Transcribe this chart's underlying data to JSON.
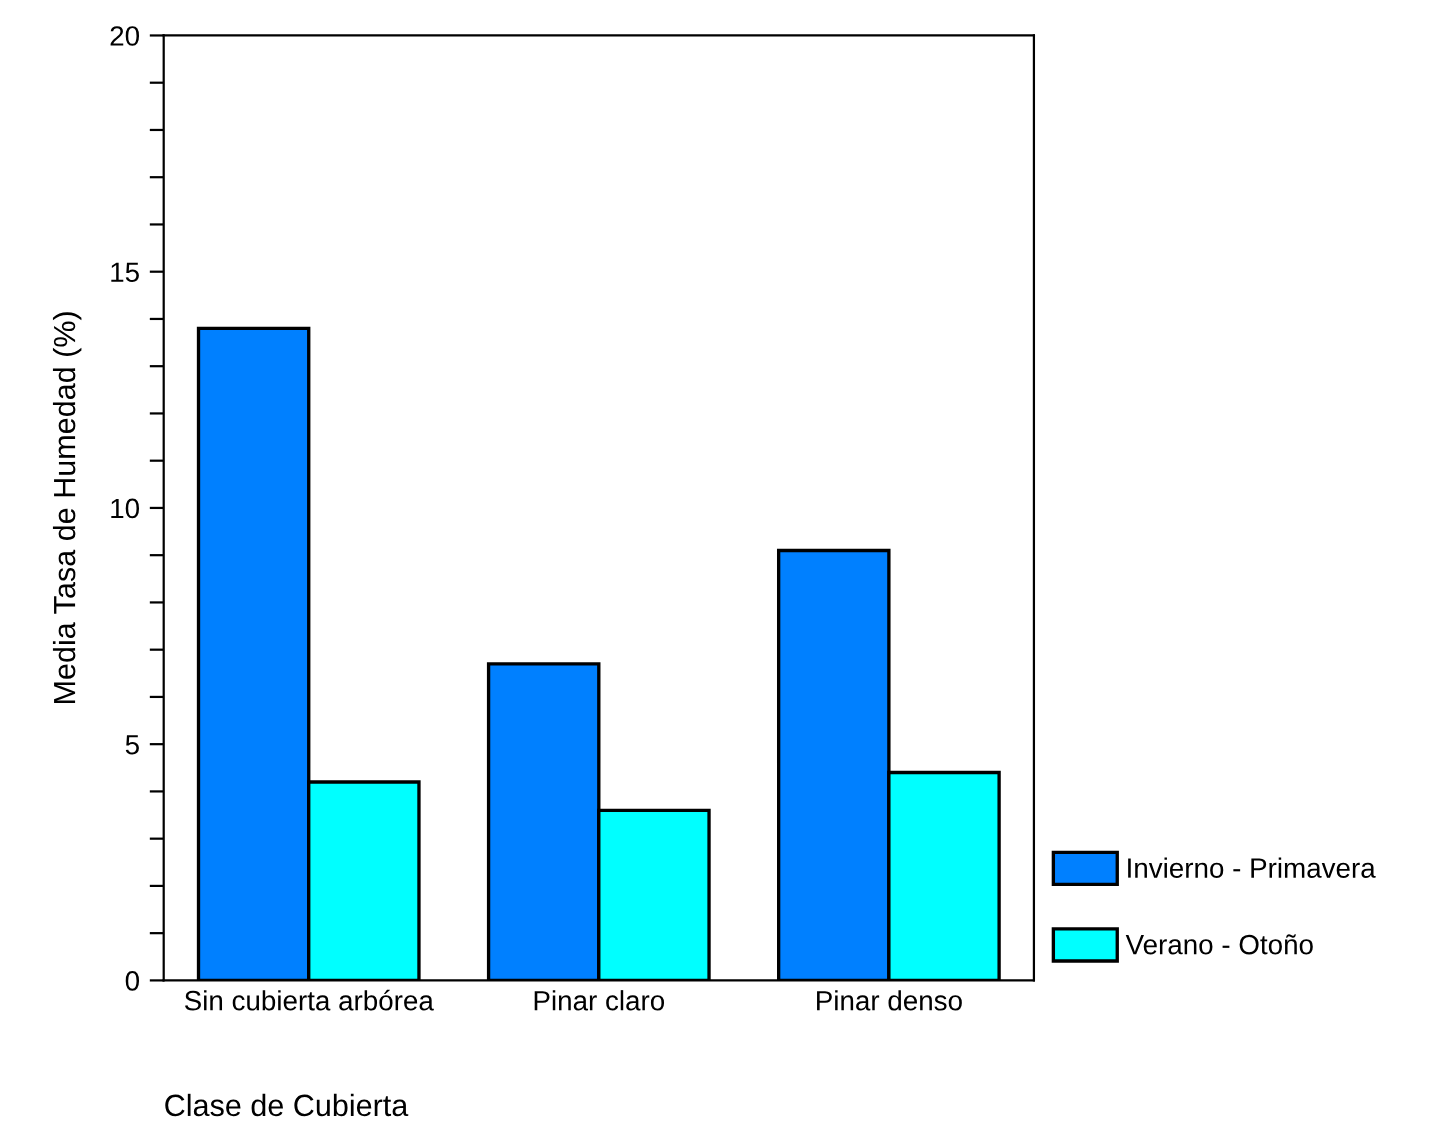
{
  "chart_data": {
    "type": "bar",
    "xlabel": "Clase de Cubierta",
    "ylabel": "Media Tasa de Humedad (%)",
    "categories": [
      "Sin cubierta arbórea",
      "Pinar claro",
      "Pinar denso"
    ],
    "series": [
      {
        "name": "Invierno - Primavera",
        "color": "#0080ff",
        "values": [
          13.8,
          6.7,
          9.1
        ]
      },
      {
        "name": "Verano - Otoño",
        "color": "#00ffff",
        "values": [
          4.2,
          3.6,
          4.4
        ]
      }
    ],
    "ylim": [
      0,
      20
    ],
    "yticks": [
      0,
      {
        "value": 1,
        "label": null
      },
      {
        "value": 2,
        "label": null
      },
      {
        "value": 3,
        "label": null
      },
      {
        "value": 4,
        "label": null
      },
      5,
      {
        "value": 6,
        "label": null
      },
      {
        "value": 7,
        "label": null
      },
      {
        "value": 8,
        "label": null
      },
      {
        "value": 9,
        "label": null
      },
      10,
      {
        "value": 11,
        "label": null
      },
      {
        "value": 12,
        "label": null
      },
      {
        "value": 13,
        "label": null
      },
      {
        "value": 14,
        "label": null
      },
      15,
      {
        "value": 16,
        "label": null
      },
      {
        "value": 17,
        "label": null
      },
      {
        "value": 18,
        "label": null
      },
      {
        "value": 19,
        "label": null
      },
      20
    ],
    "grid": false,
    "legend": "bottom right"
  }
}
